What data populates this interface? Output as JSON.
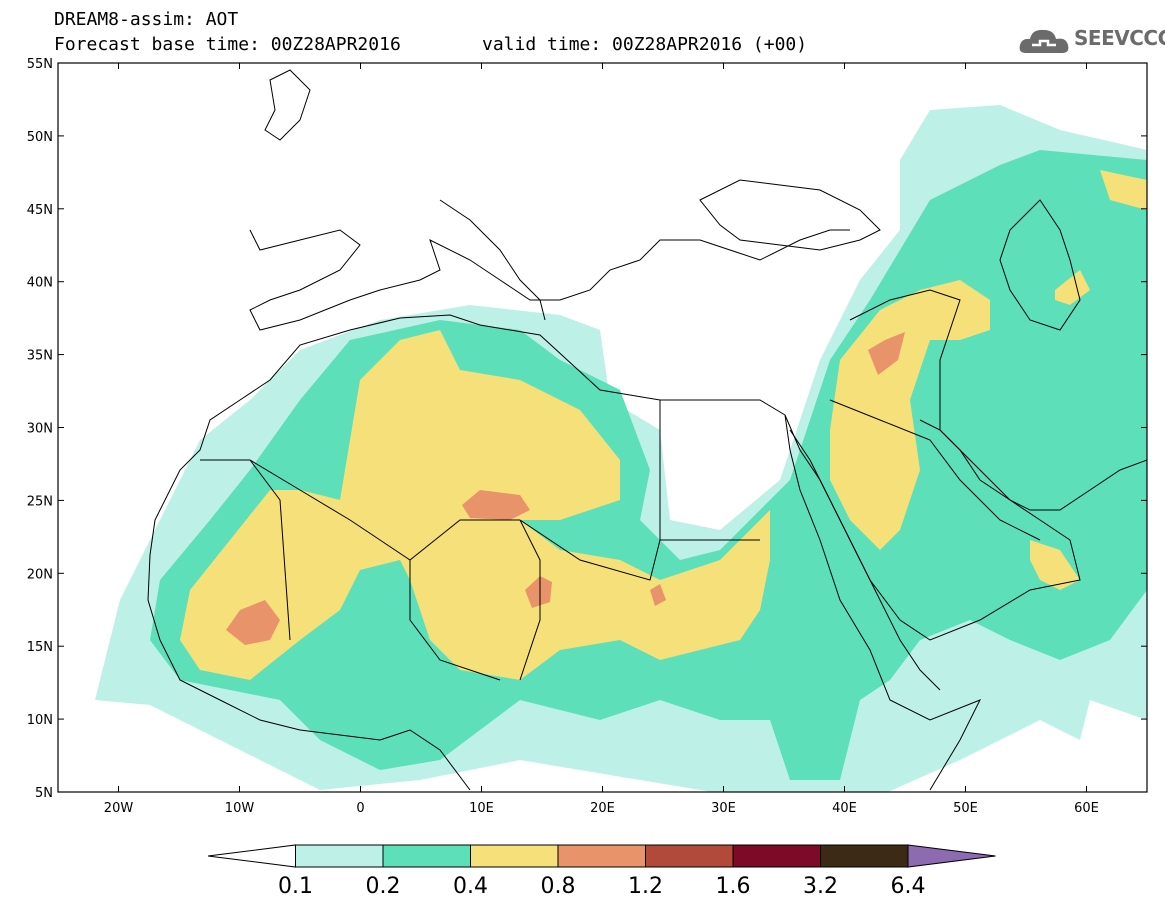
{
  "header": {
    "title_line1": "DREAM8-assim: AOT",
    "title_line2": "Forecast base time: 00Z28APR2016",
    "valid_time": "valid time: 00Z28APR2016 (+00)",
    "logo_text": "SEEVCCC"
  },
  "map": {
    "lon_range": [
      -25,
      65
    ],
    "lat_range": [
      5,
      55
    ],
    "lat_ticks": [
      {
        "value": 55,
        "label": "55N"
      },
      {
        "value": 50,
        "label": "50N"
      },
      {
        "value": 45,
        "label": "45N"
      },
      {
        "value": 40,
        "label": "40N"
      },
      {
        "value": 35,
        "label": "35N"
      },
      {
        "value": 30,
        "label": "30N"
      },
      {
        "value": 25,
        "label": "25N"
      },
      {
        "value": 20,
        "label": "20N"
      },
      {
        "value": 15,
        "label": "15N"
      },
      {
        "value": 10,
        "label": "10N"
      },
      {
        "value": 5,
        "label": "5N"
      }
    ],
    "lon_ticks": [
      {
        "value": -20,
        "label": "20W"
      },
      {
        "value": -10,
        "label": "10W"
      },
      {
        "value": 0,
        "label": "0"
      },
      {
        "value": 10,
        "label": "10E"
      },
      {
        "value": 20,
        "label": "20E"
      },
      {
        "value": 30,
        "label": "30E"
      },
      {
        "value": 40,
        "label": "40E"
      },
      {
        "value": 50,
        "label": "50E"
      },
      {
        "value": 60,
        "label": "60E"
      }
    ]
  },
  "colorbar": {
    "labels": [
      "0.1",
      "0.2",
      "0.4",
      "0.8",
      "1.2",
      "1.6",
      "3.2",
      "6.4"
    ],
    "colors": [
      "#ffffff",
      "#bdf0e6",
      "#5ddfb9",
      "#f5e07a",
      "#e9936a",
      "#b24a3a",
      "#7d0b27",
      "#3d2a16",
      "#8e6ab0"
    ]
  }
}
